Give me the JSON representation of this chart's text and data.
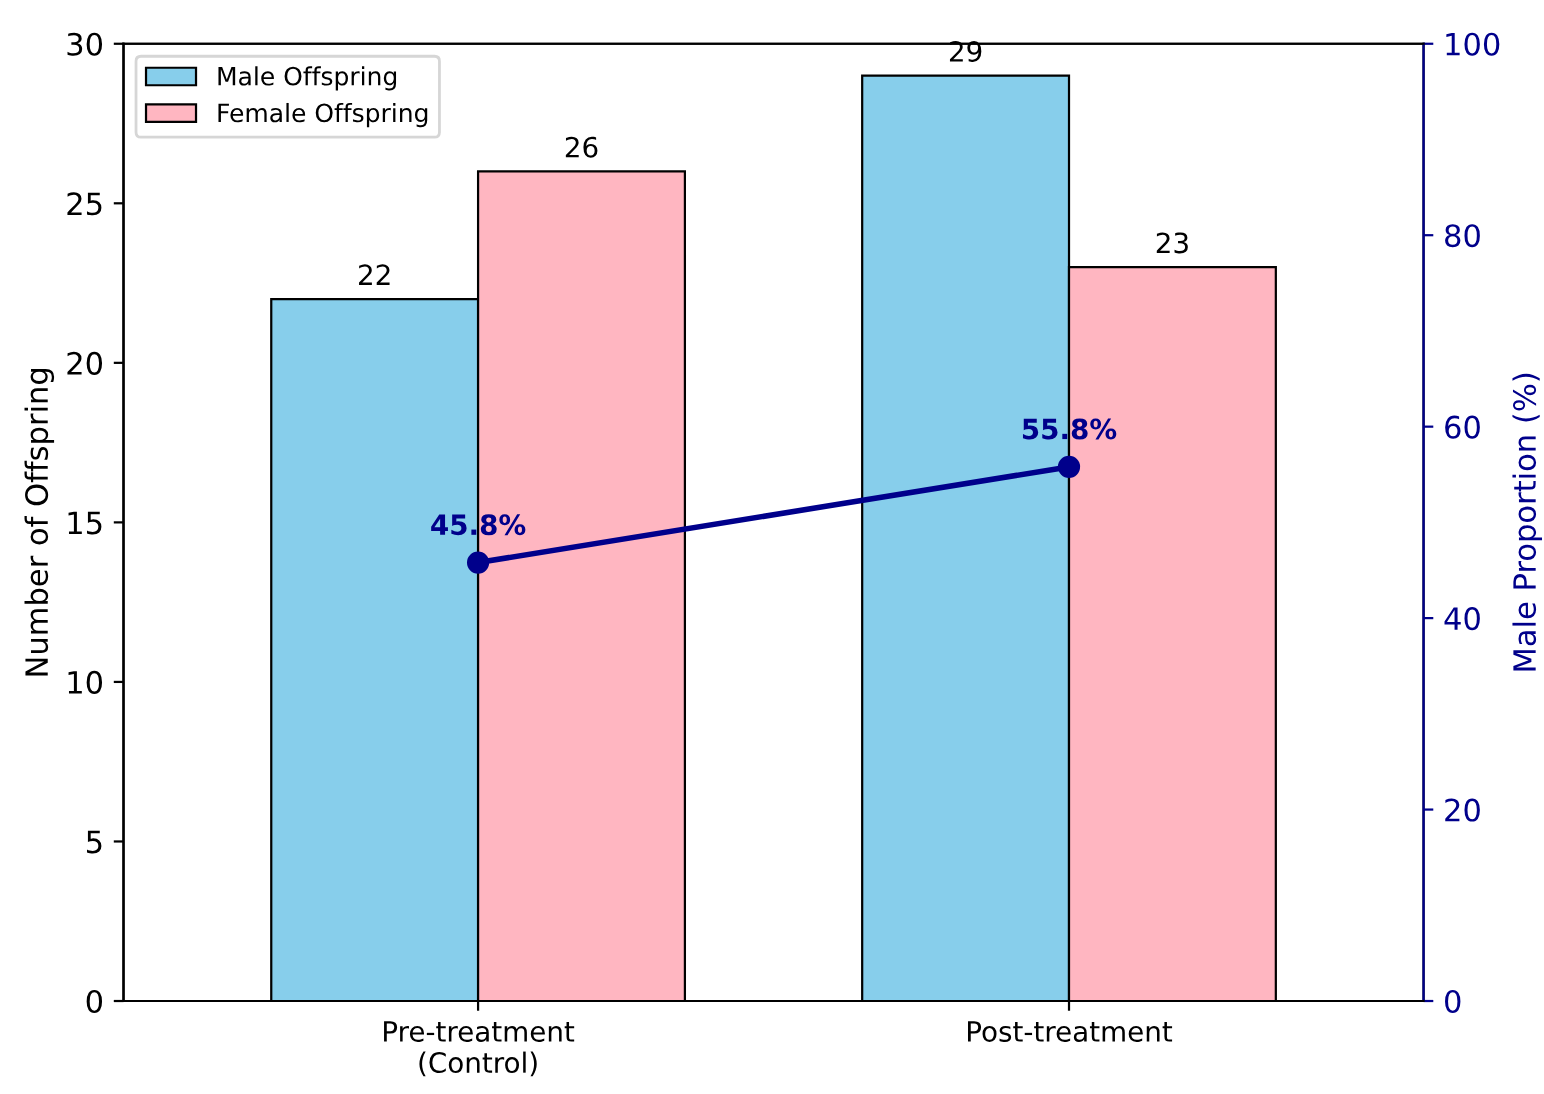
{
  "chart_data": {
    "type": "bar",
    "categories": [
      "Pre-treatment\n(Control)",
      "Post-treatment"
    ],
    "ylabel": "Number of Offspring",
    "y2label": "Male Proportion (%)",
    "ylim": [
      0,
      30
    ],
    "yticks": [
      0,
      5,
      10,
      15,
      20,
      25,
      30
    ],
    "y2lim": [
      0,
      100
    ],
    "y2ticks": [
      0,
      20,
      40,
      60,
      80,
      100
    ],
    "series": [
      {
        "name": "Male Offspring",
        "color": "#87ceeb",
        "values": [
          22,
          29
        ],
        "data_labels": true
      },
      {
        "name": "Female Offspring",
        "color": "#ffb6c1",
        "values": [
          26,
          23
        ],
        "data_labels": true
      },
      {
        "type": "line",
        "axis": "y2",
        "color": "#00008b",
        "values": [
          45.8,
          55.8
        ],
        "value_labels": [
          "45.8%",
          "55.8%"
        ],
        "marker": "circle",
        "line_style": "solid"
      }
    ],
    "legend": "top left",
    "grid": false
  }
}
